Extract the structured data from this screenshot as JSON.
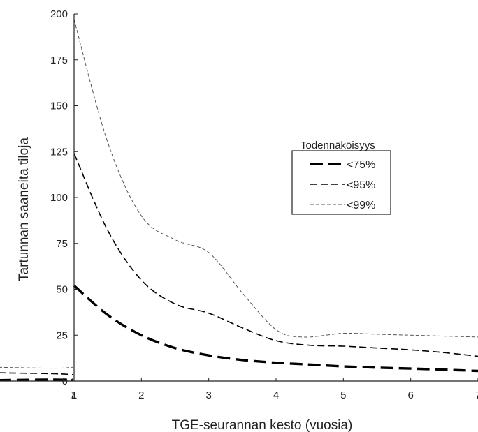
{
  "chart_data": {
    "type": "line",
    "title": "",
    "xlabel": "TGE-seurannan kesto (vuosia)",
    "ylabel": "Tartunnan saaneita tiloja",
    "xlim": [
      -9,
      7
    ],
    "ylim": [
      0,
      200
    ],
    "yticks": [
      0,
      25,
      50,
      75,
      100,
      125,
      150,
      175,
      200
    ],
    "yticklabels": [
      "0",
      "25",
      "50",
      "75",
      "100",
      "125",
      "150",
      "175",
      "200"
    ],
    "xticks": [
      -7,
      -6,
      1,
      2,
      3,
      4,
      5,
      6,
      7
    ],
    "xticklabels": [
      "7",
      "6",
      "1",
      "2",
      "3",
      "4",
      "5",
      "6",
      "7"
    ],
    "grid": false,
    "legend": {
      "title": "Todennäköisyys",
      "position": "center-right"
    },
    "series": [
      {
        "name": "<75%",
        "style": "long-dash-thick",
        "color": "#000000",
        "segments": [
          [
            [
              -9,
              0.5
            ],
            [
              -7.5,
              0.8
            ],
            [
              -7,
              0.5
            ]
          ],
          [
            [
              1,
              52
            ],
            [
              1.5,
              36
            ],
            [
              2,
              25
            ],
            [
              2.5,
              18
            ],
            [
              3,
              14
            ],
            [
              3.5,
              11.5
            ],
            [
              4,
              10
            ],
            [
              4.5,
              9
            ],
            [
              5,
              8
            ],
            [
              5.5,
              7.3
            ],
            [
              6,
              6.8
            ],
            [
              6.5,
              6.2
            ],
            [
              7,
              5.5
            ]
          ]
        ]
      },
      {
        "name": "<95%",
        "style": "dash-medium",
        "color": "#000000",
        "segments": [
          [
            [
              -9,
              4.5
            ],
            [
              -7.5,
              4
            ],
            [
              -7,
              3.5
            ]
          ],
          [
            [
              1,
              124
            ],
            [
              1.5,
              82
            ],
            [
              2,
              55
            ],
            [
              2.5,
              42
            ],
            [
              3,
              37
            ],
            [
              3.5,
              29
            ],
            [
              4,
              22
            ],
            [
              4.5,
              19.5
            ],
            [
              5,
              19
            ],
            [
              5.5,
              18
            ],
            [
              6,
              17
            ],
            [
              6.5,
              15.5
            ],
            [
              7,
              13.5
            ]
          ]
        ]
      },
      {
        "name": "<99%",
        "style": "dash-thin",
        "color": "#555555",
        "segments": [
          [
            [
              -9,
              7.5
            ],
            [
              -7.5,
              7
            ],
            [
              -7,
              7.5
            ]
          ],
          [
            [
              1,
              197
            ],
            [
              1.5,
              130
            ],
            [
              2,
              90
            ],
            [
              2.5,
              77
            ],
            [
              3,
              70
            ],
            [
              3.5,
              48
            ],
            [
              4,
              28
            ],
            [
              4.4,
              24
            ],
            [
              5,
              26
            ],
            [
              5.5,
              25.5
            ],
            [
              6,
              25
            ],
            [
              6.5,
              24.5
            ],
            [
              7,
              24
            ]
          ]
        ]
      }
    ]
  },
  "colors": {
    "axis": "#222222",
    "background": "#ffffff"
  }
}
